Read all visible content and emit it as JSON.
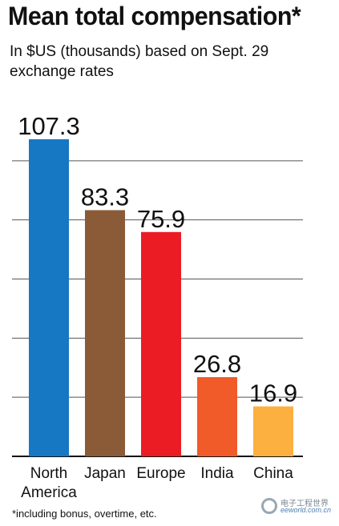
{
  "chart_data": {
    "type": "bar",
    "title": "Mean total compensation*",
    "subtitle": "In $US (thousands) based on Sept. 29 exchange rates",
    "categories": [
      "North America",
      "Japan",
      "Europe",
      "India",
      "China"
    ],
    "category_lines": [
      [
        "North",
        "America"
      ],
      [
        "Japan"
      ],
      [
        "Europe"
      ],
      [
        "India"
      ],
      [
        "China"
      ]
    ],
    "values": [
      107.3,
      83.3,
      75.9,
      26.8,
      16.9
    ],
    "value_labels": [
      "107.3",
      "83.3",
      "75.9",
      "26.8",
      "16.9"
    ],
    "colors": [
      "#1677c2",
      "#8b5b37",
      "#ec1c24",
      "#f15a29",
      "#fbb040"
    ],
    "ylim": [
      0,
      120
    ],
    "gridlines": [
      20,
      40,
      60,
      80,
      100
    ],
    "grid": true,
    "legend": "none",
    "footnote": "*including bonus, overtime, etc."
  },
  "watermark": {
    "chinese": "电子工程世界",
    "site": "eeworld.com.cn"
  }
}
